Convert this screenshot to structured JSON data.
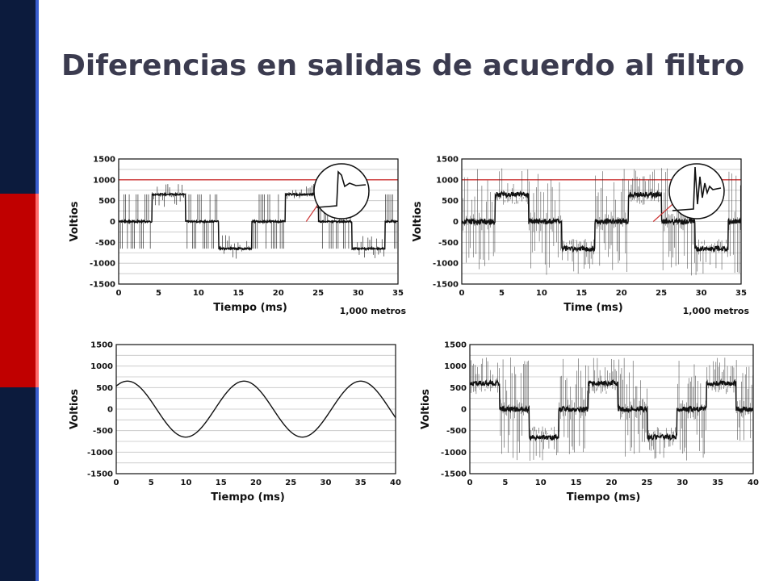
{
  "slide": {
    "title": "Diferencias en salidas de acuerdo al filtro",
    "colors": {
      "sidebar_navy": "#0c1b3d",
      "sidebar_red": "#c00000",
      "threshold_line": "#cc3333",
      "trace": "#111111",
      "title_text": "#3b3b4f"
    }
  },
  "chart_data": [
    {
      "id": "top-left",
      "type": "line",
      "ylabel": "Voltios",
      "xlabel": "Tiempo (ms)",
      "note": "1,000 metros",
      "xlim": [
        0,
        35
      ],
      "ylim": [
        -1500,
        1500
      ],
      "xticks": [
        "0",
        "5",
        "10",
        "15",
        "20",
        "25",
        "30",
        "35"
      ],
      "yticks": [
        "1500",
        "1000",
        "500",
        "0",
        "-500",
        "-1000",
        "-1500"
      ],
      "reference_line": 1000,
      "inset": "zoom-on-step-transition",
      "series": [
        {
          "style": "pwm-square",
          "period_ms": 16.7,
          "levels": [
            0,
            650,
            0,
            -650
          ],
          "spike_amplitude": 900
        }
      ]
    },
    {
      "id": "top-right",
      "type": "line",
      "ylabel": "Voltios",
      "xlabel": "Time (ms)",
      "note": "1,000 metros",
      "xlim": [
        0,
        35
      ],
      "ylim": [
        -1500,
        1500
      ],
      "xticks": [
        "0",
        "5",
        "10",
        "15",
        "20",
        "25",
        "30",
        "35"
      ],
      "yticks": [
        "1500",
        "1000",
        "500",
        "0",
        "-500",
        "-1000",
        "-1500"
      ],
      "reference_line": 1000,
      "inset": "zoom-on-ringing-transition",
      "series": [
        {
          "style": "pwm-ringing",
          "period_ms": 16.7,
          "levels": [
            0,
            650,
            0,
            -650
          ],
          "spike_amplitude": 1300
        }
      ]
    },
    {
      "id": "bottom-left",
      "type": "line",
      "ylabel": "Voltios",
      "xlabel": "Tiempo (ms)",
      "xlim": [
        0,
        40
      ],
      "ylim": [
        -1500,
        1500
      ],
      "xticks": [
        "0",
        "5",
        "10",
        "15",
        "20",
        "25",
        "30",
        "35",
        "40"
      ],
      "yticks": [
        "1500",
        "1000",
        "500",
        "0",
        "-500",
        "-1000",
        "-1500"
      ],
      "series": [
        {
          "style": "sine",
          "amplitude": 650,
          "period_ms": 16.7,
          "peak_ms": 18.3
        }
      ]
    },
    {
      "id": "bottom-right",
      "type": "line",
      "ylabel": "Voltios",
      "xlabel": "Tiempo (ms)",
      "xlim": [
        0,
        40
      ],
      "ylim": [
        -1500,
        1500
      ],
      "xticks": [
        "0",
        "5",
        "10",
        "15",
        "20",
        "25",
        "30",
        "35",
        "40"
      ],
      "yticks": [
        "1500",
        "1000",
        "500",
        "0",
        "-500",
        "-1000",
        "-1500"
      ],
      "series": [
        {
          "style": "pwm-ringing",
          "period_ms": 16.7,
          "levels": [
            600,
            0,
            -650,
            0
          ],
          "spike_amplitude": 1200
        }
      ]
    }
  ]
}
